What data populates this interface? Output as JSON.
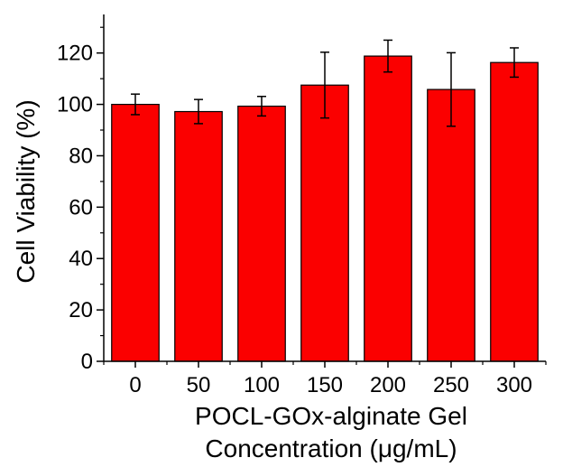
{
  "chart_data": {
    "type": "bar",
    "title": "",
    "categories": [
      "0",
      "50",
      "100",
      "150",
      "200",
      "250",
      "300"
    ],
    "values": [
      100,
      97.2,
      99.3,
      107.5,
      118.8,
      105.8,
      116.3
    ],
    "errors": [
      4,
      4.7,
      3.8,
      12.8,
      6.2,
      14.3,
      5.7
    ],
    "xlabel_line1": "POCL-GOx-alginate Gel",
    "xlabel_line2": "Concentration (μg/mL)",
    "ylabel": "Cell Viability (%)",
    "ylim": [
      0,
      135
    ],
    "yticks": [
      0,
      20,
      40,
      60,
      80,
      100,
      120
    ],
    "grid": false,
    "legend": "none",
    "colors": {
      "bar_fill": "#fb0000",
      "bar_stroke": "#000000",
      "error_bar": "#000000"
    }
  }
}
